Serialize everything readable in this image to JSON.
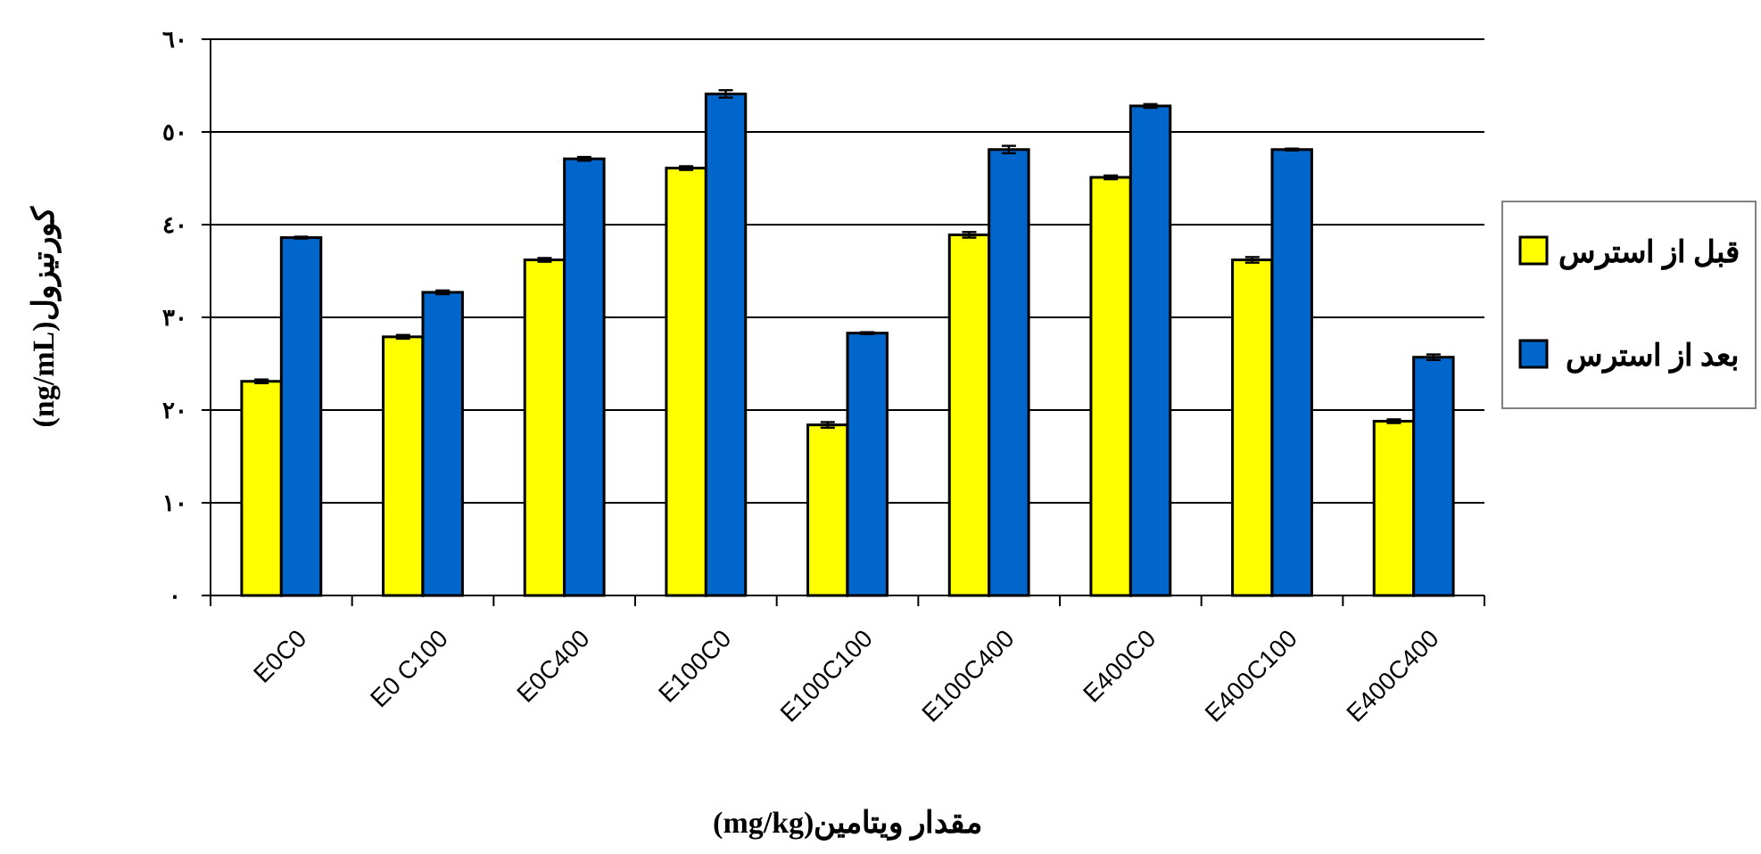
{
  "chart_data": {
    "type": "bar",
    "xlabel": "مقدار ویتامین(mg/kg)",
    "ylabel": "کورتیزول(ng/mL)",
    "categories": [
      "E0C0",
      "E0 C100",
      "E0C400",
      "E100C0",
      "E100C100",
      "E100C400",
      "E400C0",
      "E400C100",
      "E400C400"
    ],
    "series": [
      {
        "name": "قبل از استرس",
        "color": "#ffff00",
        "values": [
          23.1,
          27.9,
          36.2,
          46.1,
          18.4,
          38.9,
          45.1,
          36.2,
          18.8
        ],
        "errors": [
          0.2,
          0.2,
          0.2,
          0.2,
          0.3,
          0.3,
          0.2,
          0.3,
          0.2
        ]
      },
      {
        "name": "بعد از استرس",
        "color": "#0066cc",
        "values": [
          38.6,
          32.7,
          47.1,
          54.1,
          28.3,
          48.1,
          52.8,
          48.1,
          25.7
        ],
        "errors": [
          0.1,
          0.2,
          0.2,
          0.4,
          0.1,
          0.4,
          0.2,
          0.1,
          0.3
        ]
      }
    ],
    "ylim": [
      0,
      60
    ],
    "yticks": [
      {
        "value": 0,
        "label": "٠"
      },
      {
        "value": 10,
        "label": "١٠"
      },
      {
        "value": 20,
        "label": "٢٠"
      },
      {
        "value": 30,
        "label": "٣٠"
      },
      {
        "value": 40,
        "label": "٤٠"
      },
      {
        "value": 50,
        "label": "٥٠"
      },
      {
        "value": 60,
        "label": "٦٠"
      }
    ],
    "grid": "y",
    "legend": "right"
  }
}
